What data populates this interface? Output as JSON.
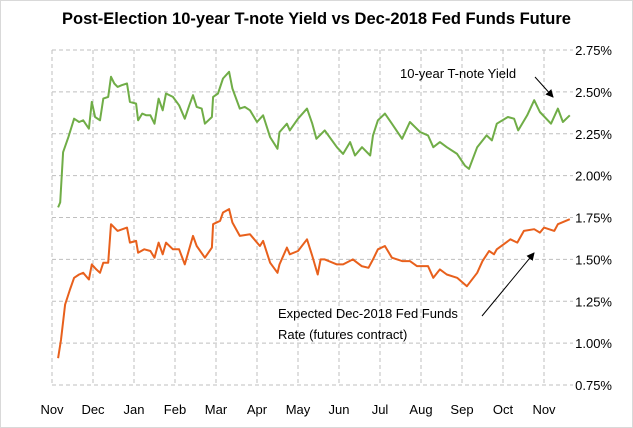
{
  "chart_data": {
    "type": "line",
    "title": "Post-Election 10-year T-note Yield vs Dec-2018 Fed Funds Future",
    "xlabel": "",
    "ylabel": "",
    "x_tick_labels": [
      "Nov",
      "Dec",
      "Jan",
      "Feb",
      "Mar",
      "Apr",
      "May",
      "Jun",
      "Jul",
      "Aug",
      "Sep",
      "Oct",
      "Nov"
    ],
    "x_unit": "months since start of Nov 2016",
    "xlim": [
      0,
      12.7
    ],
    "y_tick_labels": [
      "2.75%",
      "2.50%",
      "2.25%",
      "2.00%",
      "1.75%",
      "1.50%",
      "1.25%",
      "1.00%",
      "0.75%"
    ],
    "ylim": [
      0.75,
      2.75
    ],
    "grid": true,
    "series": [
      {
        "name": "10-year T-note Yield",
        "color": "#70ad47",
        "points": [
          [
            0.15,
            1.81
          ],
          [
            0.2,
            1.84
          ],
          [
            0.27,
            2.14
          ],
          [
            0.4,
            2.23
          ],
          [
            0.54,
            2.34
          ],
          [
            0.66,
            2.32
          ],
          [
            0.76,
            2.33
          ],
          [
            0.9,
            2.28
          ],
          [
            0.97,
            2.44
          ],
          [
            1.05,
            2.35
          ],
          [
            1.17,
            2.33
          ],
          [
            1.25,
            2.46
          ],
          [
            1.37,
            2.47
          ],
          [
            1.44,
            2.59
          ],
          [
            1.52,
            2.55
          ],
          [
            1.6,
            2.53
          ],
          [
            1.7,
            2.54
          ],
          [
            1.83,
            2.55
          ],
          [
            1.9,
            2.44
          ],
          [
            2.05,
            2.43
          ],
          [
            2.1,
            2.33
          ],
          [
            2.2,
            2.37
          ],
          [
            2.3,
            2.36
          ],
          [
            2.4,
            2.36
          ],
          [
            2.5,
            2.31
          ],
          [
            2.6,
            2.46
          ],
          [
            2.7,
            2.39
          ],
          [
            2.78,
            2.49
          ],
          [
            2.95,
            2.47
          ],
          [
            3.1,
            2.42
          ],
          [
            3.24,
            2.34
          ],
          [
            3.35,
            2.42
          ],
          [
            3.44,
            2.48
          ],
          [
            3.53,
            2.41
          ],
          [
            3.65,
            2.4
          ],
          [
            3.73,
            2.31
          ],
          [
            3.9,
            2.35
          ],
          [
            3.93,
            2.47
          ],
          [
            4.05,
            2.49
          ],
          [
            4.17,
            2.58
          ],
          [
            4.32,
            2.62
          ],
          [
            4.4,
            2.52
          ],
          [
            4.58,
            2.4
          ],
          [
            4.7,
            2.41
          ],
          [
            4.83,
            2.39
          ],
          [
            5.0,
            2.32
          ],
          [
            5.15,
            2.36
          ],
          [
            5.32,
            2.23
          ],
          [
            5.5,
            2.16
          ],
          [
            5.55,
            2.26
          ],
          [
            5.73,
            2.31
          ],
          [
            5.8,
            2.27
          ],
          [
            6.0,
            2.34
          ],
          [
            6.22,
            2.4
          ],
          [
            6.35,
            2.31
          ],
          [
            6.45,
            2.22
          ],
          [
            6.65,
            2.27
          ],
          [
            6.95,
            2.17
          ],
          [
            7.1,
            2.13
          ],
          [
            7.27,
            2.2
          ],
          [
            7.39,
            2.12
          ],
          [
            7.56,
            2.17
          ],
          [
            7.76,
            2.12
          ],
          [
            7.83,
            2.24
          ],
          [
            7.95,
            2.33
          ],
          [
            8.12,
            2.37
          ],
          [
            8.29,
            2.31
          ],
          [
            8.54,
            2.22
          ],
          [
            8.73,
            2.32
          ],
          [
            8.98,
            2.26
          ],
          [
            9.17,
            2.24
          ],
          [
            9.3,
            2.17
          ],
          [
            9.46,
            2.2
          ],
          [
            9.63,
            2.17
          ],
          [
            9.88,
            2.13
          ],
          [
            10.07,
            2.06
          ],
          [
            10.17,
            2.04
          ],
          [
            10.37,
            2.17
          ],
          [
            10.6,
            2.24
          ],
          [
            10.73,
            2.21
          ],
          [
            10.85,
            2.31
          ],
          [
            11.12,
            2.35
          ],
          [
            11.27,
            2.34
          ],
          [
            11.37,
            2.27
          ],
          [
            11.59,
            2.36
          ],
          [
            11.76,
            2.45
          ],
          [
            11.9,
            2.38
          ],
          [
            12.17,
            2.31
          ],
          [
            12.34,
            2.4
          ],
          [
            12.46,
            2.32
          ],
          [
            12.63,
            2.36
          ]
        ]
      },
      {
        "name": "Expected Dec-2018 Fed Funds Rate (futures contract)",
        "color": "#e8601c",
        "points": [
          [
            0.15,
            0.91
          ],
          [
            0.22,
            1.02
          ],
          [
            0.32,
            1.23
          ],
          [
            0.44,
            1.32
          ],
          [
            0.54,
            1.39
          ],
          [
            0.66,
            1.41
          ],
          [
            0.76,
            1.42
          ],
          [
            0.9,
            1.38
          ],
          [
            0.97,
            1.47
          ],
          [
            1.08,
            1.44
          ],
          [
            1.17,
            1.42
          ],
          [
            1.25,
            1.48
          ],
          [
            1.37,
            1.48
          ],
          [
            1.44,
            1.71
          ],
          [
            1.6,
            1.67
          ],
          [
            1.83,
            1.69
          ],
          [
            1.9,
            1.6
          ],
          [
            2.05,
            1.61
          ],
          [
            2.1,
            1.54
          ],
          [
            2.25,
            1.56
          ],
          [
            2.4,
            1.55
          ],
          [
            2.5,
            1.51
          ],
          [
            2.6,
            1.6
          ],
          [
            2.7,
            1.53
          ],
          [
            2.78,
            1.6
          ],
          [
            2.95,
            1.56
          ],
          [
            3.1,
            1.56
          ],
          [
            3.24,
            1.47
          ],
          [
            3.44,
            1.64
          ],
          [
            3.53,
            1.58
          ],
          [
            3.73,
            1.51
          ],
          [
            3.9,
            1.57
          ],
          [
            3.93,
            1.71
          ],
          [
            4.1,
            1.73
          ],
          [
            4.17,
            1.78
          ],
          [
            4.32,
            1.8
          ],
          [
            4.4,
            1.72
          ],
          [
            4.58,
            1.64
          ],
          [
            4.83,
            1.65
          ],
          [
            5.07,
            1.58
          ],
          [
            5.15,
            1.61
          ],
          [
            5.32,
            1.48
          ],
          [
            5.5,
            1.42
          ],
          [
            5.55,
            1.47
          ],
          [
            5.73,
            1.57
          ],
          [
            5.8,
            1.53
          ],
          [
            6.0,
            1.55
          ],
          [
            6.22,
            1.62
          ],
          [
            6.35,
            1.52
          ],
          [
            6.48,
            1.41
          ],
          [
            6.55,
            1.5
          ],
          [
            6.65,
            1.5
          ],
          [
            6.95,
            1.47
          ],
          [
            7.1,
            1.47
          ],
          [
            7.34,
            1.5
          ],
          [
            7.55,
            1.46
          ],
          [
            7.72,
            1.45
          ],
          [
            7.83,
            1.5
          ],
          [
            7.95,
            1.56
          ],
          [
            8.12,
            1.58
          ],
          [
            8.29,
            1.51
          ],
          [
            8.54,
            1.49
          ],
          [
            8.73,
            1.49
          ],
          [
            8.9,
            1.46
          ],
          [
            9.17,
            1.46
          ],
          [
            9.3,
            1.39
          ],
          [
            9.46,
            1.44
          ],
          [
            9.63,
            1.41
          ],
          [
            9.88,
            1.39
          ],
          [
            10.12,
            1.34
          ],
          [
            10.37,
            1.42
          ],
          [
            10.5,
            1.49
          ],
          [
            10.66,
            1.55
          ],
          [
            10.78,
            1.53
          ],
          [
            10.85,
            1.56
          ],
          [
            11.18,
            1.62
          ],
          [
            11.35,
            1.6
          ],
          [
            11.51,
            1.67
          ],
          [
            11.76,
            1.68
          ],
          [
            11.9,
            1.66
          ],
          [
            12.0,
            1.69
          ],
          [
            12.25,
            1.67
          ],
          [
            12.34,
            1.71
          ],
          [
            12.63,
            1.74
          ]
        ]
      }
    ],
    "annotations": [
      {
        "text": "10-year T-note Yield",
        "points_to": "10-year T-note Yield"
      },
      {
        "lines": [
          "Expected Dec-2018 Fed Funds",
          "Rate (futures contract)"
        ],
        "points_to": "Expected Dec-2018 Fed Funds Rate (futures contract)"
      }
    ],
    "legend": "none"
  }
}
